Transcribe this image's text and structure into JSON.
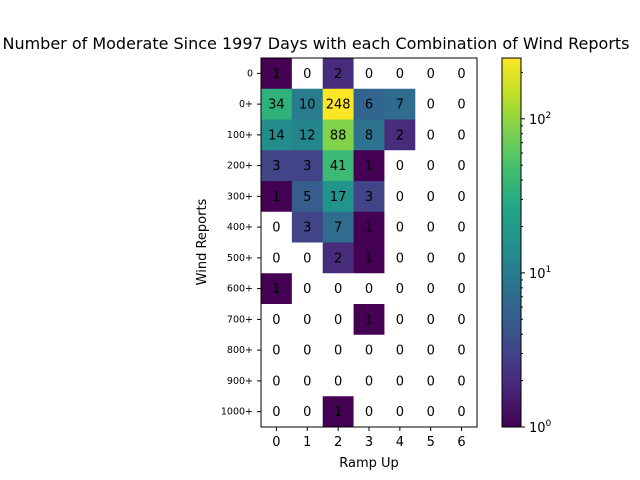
{
  "chart_data": {
    "type": "heatmap",
    "title": "Number of Moderate Since 1997 Days with each Combination of Wind Reports",
    "xlabel": "Ramp Up",
    "ylabel": "Wind Reports",
    "x_categories": [
      "0",
      "1",
      "2",
      "3",
      "4",
      "5",
      "6"
    ],
    "y_categories": [
      "0",
      "0+",
      "100+",
      "200+",
      "300+",
      "400+",
      "500+",
      "600+",
      "700+",
      "800+",
      "900+",
      "1000+"
    ],
    "values": [
      [
        1,
        0,
        2,
        0,
        0,
        0,
        0
      ],
      [
        34,
        10,
        248,
        6,
        7,
        0,
        0
      ],
      [
        14,
        12,
        88,
        8,
        2,
        0,
        0
      ],
      [
        3,
        3,
        41,
        1,
        0,
        0,
        0
      ],
      [
        1,
        5,
        17,
        3,
        0,
        0,
        0
      ],
      [
        0,
        3,
        7,
        1,
        0,
        0,
        0
      ],
      [
        0,
        0,
        2,
        1,
        0,
        0,
        0
      ],
      [
        1,
        0,
        0,
        0,
        0,
        0,
        0
      ],
      [
        0,
        0,
        0,
        1,
        0,
        0,
        0
      ],
      [
        0,
        0,
        0,
        0,
        0,
        0,
        0
      ],
      [
        0,
        0,
        0,
        0,
        0,
        0,
        0
      ],
      [
        0,
        0,
        1,
        0,
        0,
        0,
        0
      ]
    ],
    "colormap": "viridis",
    "color_scale": "log",
    "color_range": [
      1,
      248
    ],
    "zero_color": "#ffffff",
    "colorbar": {
      "tick_values": [
        1,
        10,
        100
      ],
      "tick_labels": [
        "10^0",
        "10^1",
        "10^2"
      ]
    },
    "grid": false
  }
}
